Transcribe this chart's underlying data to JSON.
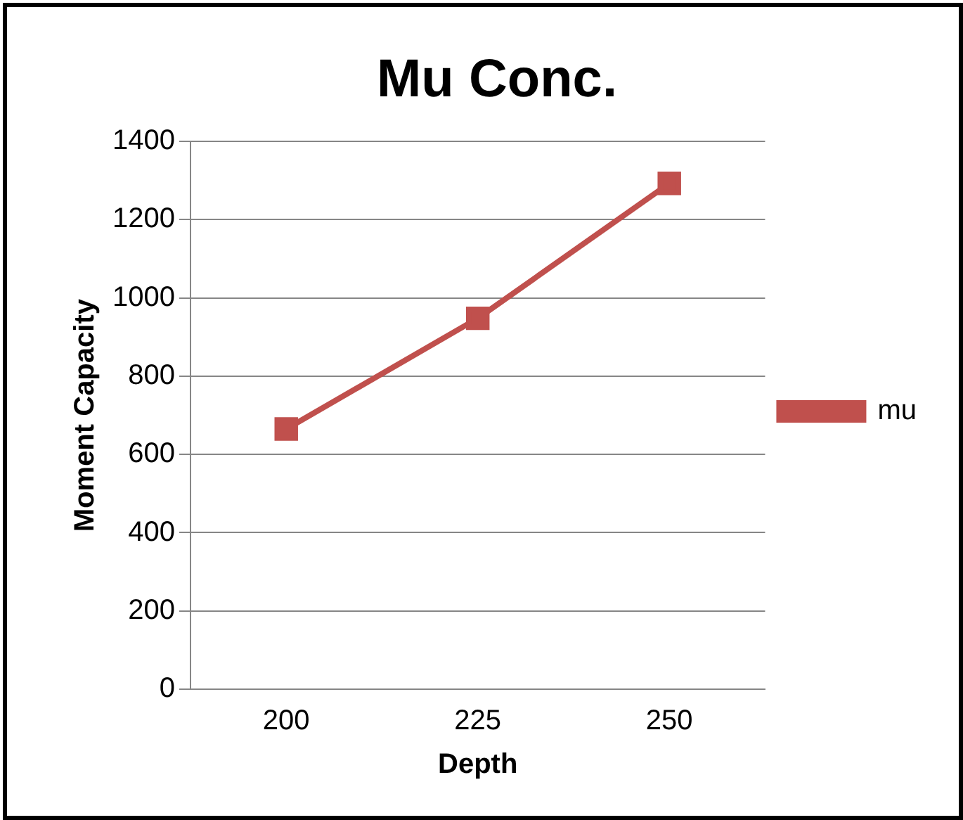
{
  "chart_data": {
    "type": "line",
    "title": "Mu Conc.",
    "xlabel": "Depth",
    "ylabel": "Moment Capacity",
    "categories": [
      "200",
      "225",
      "250"
    ],
    "series": [
      {
        "name": "mu",
        "color": "#c0504d",
        "values": [
          665,
          948,
          1293
        ]
      }
    ],
    "ylim": [
      0,
      1400
    ],
    "yticks": [
      0,
      200,
      400,
      600,
      800,
      1000,
      1200,
      1400
    ],
    "grid": "y",
    "legend": "right",
    "marker": "square",
    "line_style": "solid"
  }
}
